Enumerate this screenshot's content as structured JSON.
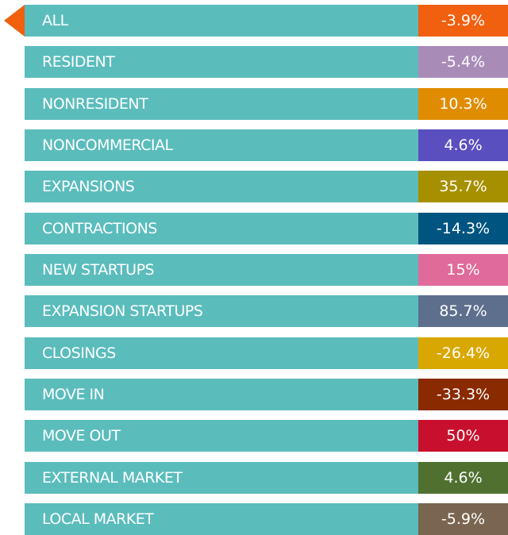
{
  "rows": [
    {
      "label": "ALL",
      "value": "-3.9%",
      "color": "#f0600f"
    },
    {
      "label": "RESIDENT",
      "value": "-5.4%",
      "color": "#a98bb8"
    },
    {
      "label": "NONRESIDENT",
      "value": "10.3%",
      "color": "#e08c00"
    },
    {
      "label": "NONCOMMERCIAL",
      "value": "4.6%",
      "color": "#5a4fbf"
    },
    {
      "label": "EXPANSIONS",
      "value": "35.7%",
      "color": "#a69000"
    },
    {
      "label": "CONTRACTIONS",
      "value": "-14.3%",
      "color": "#005580"
    },
    {
      "label": "NEW STARTUPS",
      "value": "15%",
      "color": "#e06a9a"
    },
    {
      "label": "EXPANSION STARTUPS",
      "value": "85.7%",
      "color": "#5e6f8e"
    },
    {
      "label": "CLOSINGS",
      "value": "-26.4%",
      "color": "#d9a800"
    },
    {
      "label": "MOVE IN",
      "value": "-33.3%",
      "color": "#8a2a00"
    },
    {
      "label": "MOVE OUT",
      "value": "50%",
      "color": "#c8102e"
    },
    {
      "label": "EXTERNAL MARKET",
      "value": "4.6%",
      "color": "#507030"
    },
    {
      "label": "LOCAL MARKET",
      "value": "-5.9%",
      "color": "#7a6550"
    }
  ]
}
